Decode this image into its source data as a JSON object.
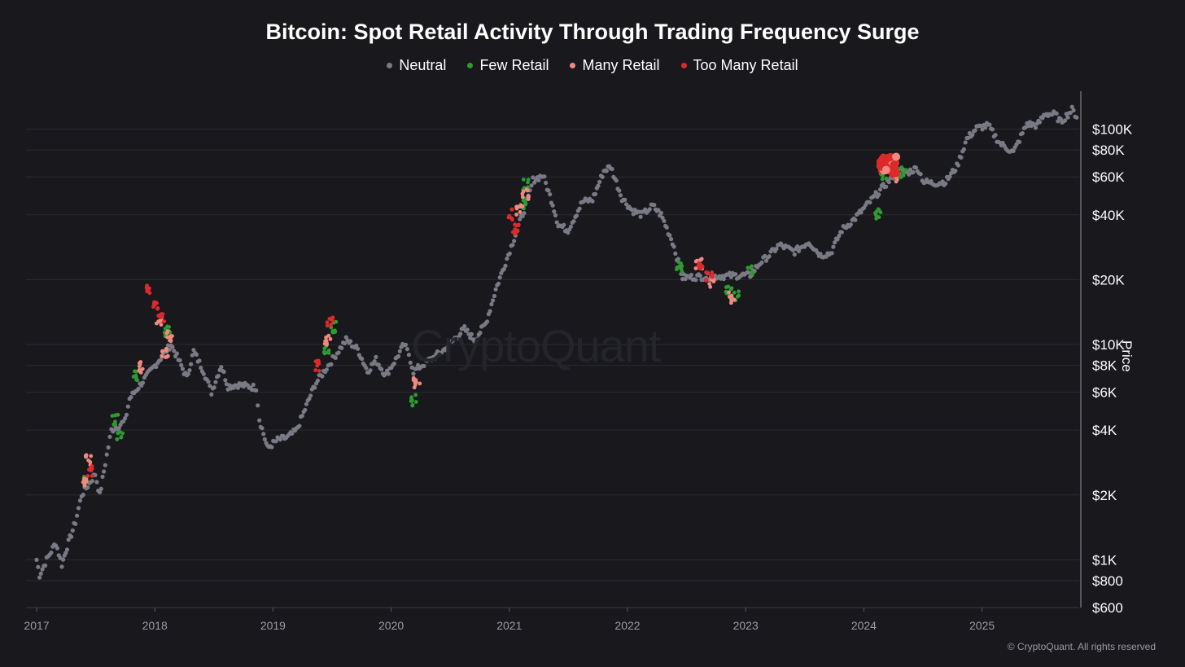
{
  "title": "Bitcoin: Spot Retail Activity Through Trading Frequency Surge",
  "watermark": "CryptoQuant",
  "copyright": "© CryptoQuant. All rights reserved",
  "colors": {
    "background": "#18181d",
    "grid": "#2a2a31",
    "neutral": "#7a7a86",
    "few_retail": "#2f9a2f",
    "many_retail": "#f08a80",
    "too_many_retail": "#dc2a2a"
  },
  "chart_data": {
    "type": "scatter",
    "title": "Bitcoin: Spot Retail Activity Through Trading Frequency Surge",
    "ylabel": "Price",
    "yscale": "log",
    "ylim": [
      600,
      150000
    ],
    "xlim": [
      "2017-01-01",
      "2025-11-10"
    ],
    "x_ticks": [
      "2017",
      "2018",
      "2019",
      "2020",
      "2021",
      "2022",
      "2023",
      "2024",
      "2025"
    ],
    "y_ticks": [
      {
        "value": 600,
        "label": "$600"
      },
      {
        "value": 800,
        "label": "$800"
      },
      {
        "value": 1000,
        "label": "$1K"
      },
      {
        "value": 2000,
        "label": "$2K"
      },
      {
        "value": 4000,
        "label": "$4K"
      },
      {
        "value": 6000,
        "label": "$6K"
      },
      {
        "value": 8000,
        "label": "$8K"
      },
      {
        "value": 10000,
        "label": "$10K"
      },
      {
        "value": 20000,
        "label": "$20K"
      },
      {
        "value": 40000,
        "label": "$40K"
      },
      {
        "value": 60000,
        "label": "$60K"
      },
      {
        "value": 80000,
        "label": "$80K"
      },
      {
        "value": 100000,
        "label": "$100K"
      }
    ],
    "legend_position": "top-center",
    "grid": true,
    "series": [
      {
        "name": "Neutral",
        "color": "#7a7a86",
        "points": [
          [
            "2017-01-01",
            1000
          ],
          [
            "2017-01-10",
            850
          ],
          [
            "2017-02-01",
            1000
          ],
          [
            "2017-03-01",
            1200
          ],
          [
            "2017-03-20",
            950
          ],
          [
            "2017-04-01",
            1100
          ],
          [
            "2017-05-01",
            1500
          ],
          [
            "2017-05-20",
            2000
          ],
          [
            "2017-07-01",
            2500
          ],
          [
            "2017-07-15",
            2000
          ],
          [
            "2017-08-01",
            2800
          ],
          [
            "2017-08-20",
            4000
          ],
          [
            "2017-10-01",
            4400
          ],
          [
            "2017-10-15",
            5600
          ],
          [
            "2018-02-20",
            10000
          ],
          [
            "2018-03-15",
            8500
          ],
          [
            "2018-04-10",
            7000
          ],
          [
            "2018-05-01",
            9300
          ],
          [
            "2018-06-01",
            7500
          ],
          [
            "2018-06-25",
            6000
          ],
          [
            "2018-07-25",
            8000
          ],
          [
            "2018-08-15",
            6400
          ],
          [
            "2018-09-15",
            6500
          ],
          [
            "2018-10-15",
            6400
          ],
          [
            "2018-11-10",
            6300
          ],
          [
            "2018-11-20",
            4500
          ],
          [
            "2018-12-15",
            3300
          ],
          [
            "2019-01-15",
            3600
          ],
          [
            "2019-02-15",
            3700
          ],
          [
            "2019-03-15",
            4000
          ],
          [
            "2019-04-10",
            5000
          ],
          [
            "2019-05-10",
            6500
          ],
          [
            "2019-08-15",
            10500
          ],
          [
            "2019-09-20",
            9500
          ],
          [
            "2019-10-20",
            7500
          ],
          [
            "2019-11-15",
            8500
          ],
          [
            "2019-12-15",
            7200
          ],
          [
            "2020-01-15",
            8500
          ],
          [
            "2020-02-10",
            10000
          ],
          [
            "2020-02-25",
            9000
          ],
          [
            "2020-03-10",
            7500
          ],
          [
            "2020-05-10",
            8700
          ],
          [
            "2020-06-15",
            9500
          ],
          [
            "2020-07-25",
            11000
          ],
          [
            "2020-08-15",
            11800
          ],
          [
            "2020-09-15",
            10500
          ],
          [
            "2020-10-20",
            12500
          ],
          [
            "2020-11-20",
            18000
          ],
          [
            "2020-12-20",
            24000
          ],
          [
            "2021-03-01",
            48000
          ],
          [
            "2021-03-15",
            58000
          ],
          [
            "2021-04-15",
            61000
          ],
          [
            "2021-05-15",
            45000
          ],
          [
            "2021-06-01",
            36000
          ],
          [
            "2021-07-01",
            34000
          ],
          [
            "2021-08-15",
            46000
          ],
          [
            "2021-09-15",
            47000
          ],
          [
            "2021-10-20",
            64000
          ],
          [
            "2021-11-10",
            67000
          ],
          [
            "2021-12-15",
            48000
          ],
          [
            "2022-01-15",
            42000
          ],
          [
            "2022-02-15",
            40000
          ],
          [
            "2022-03-20",
            44000
          ],
          [
            "2022-04-15",
            40000
          ],
          [
            "2022-05-20",
            30000
          ],
          [
            "2022-06-20",
            20500
          ],
          [
            "2023-01-15",
            21000
          ],
          [
            "2023-02-15",
            24000
          ],
          [
            "2023-03-15",
            26000
          ],
          [
            "2023-04-15",
            29000
          ],
          [
            "2023-06-01",
            27000
          ],
          [
            "2023-07-15",
            30000
          ],
          [
            "2023-08-20",
            26000
          ],
          [
            "2023-09-20",
            26500
          ],
          [
            "2023-10-25",
            34000
          ],
          [
            "2023-12-01",
            38000
          ],
          [
            "2024-04-15",
            64000
          ],
          [
            "2024-05-15",
            63000
          ],
          [
            "2024-06-15",
            66000
          ],
          [
            "2024-07-05",
            57000
          ],
          [
            "2024-08-05",
            56000
          ],
          [
            "2024-09-10",
            57000
          ],
          [
            "2024-10-15",
            67000
          ],
          [
            "2024-11-15",
            90000
          ],
          [
            "2024-12-15",
            101000
          ],
          [
            "2025-01-20",
            104000
          ],
          [
            "2025-02-25",
            86000
          ],
          [
            "2025-04-08",
            78000
          ],
          [
            "2025-05-20",
            106000
          ],
          [
            "2025-06-20",
            104000
          ],
          [
            "2025-07-15",
            118000
          ],
          [
            "2025-08-15",
            117000
          ],
          [
            "2025-09-01",
            108000
          ],
          [
            "2025-10-06",
            123000
          ],
          [
            "2025-10-25",
            112000
          ]
        ]
      },
      {
        "name": "Few Retail",
        "color": "#2f9a2f",
        "points": [
          [
            "2017-06-01",
            2300
          ],
          [
            "2017-09-01",
            4500
          ],
          [
            "2017-09-15",
            3800
          ],
          [
            "2017-11-05",
            7200
          ],
          [
            "2018-02-10",
            11500
          ],
          [
            "2019-06-15",
            9500
          ],
          [
            "2019-07-05",
            12000
          ],
          [
            "2020-03-13",
            5500
          ],
          [
            "2021-02-10",
            45000
          ],
          [
            "2021-02-22",
            55000
          ],
          [
            "2022-06-10",
            23000
          ],
          [
            "2022-11-10",
            17500
          ],
          [
            "2022-12-01",
            16800
          ],
          [
            "2023-01-15",
            22000
          ],
          [
            "2024-03-01",
            61000
          ],
          [
            "2024-02-15",
            40000
          ],
          [
            "2024-05-01",
            63000
          ]
        ]
      },
      {
        "name": "Many Retail",
        "color": "#f08a80",
        "points": [
          [
            "2017-05-25",
            2300
          ],
          [
            "2017-06-10",
            2900
          ],
          [
            "2017-11-15",
            7800
          ],
          [
            "2018-01-15",
            13000
          ],
          [
            "2018-02-01",
            9000
          ],
          [
            "2018-02-15",
            11000
          ],
          [
            "2019-06-20",
            10500
          ],
          [
            "2020-03-20",
            6600
          ],
          [
            "2021-02-01",
            42000
          ],
          [
            "2021-02-20",
            50000
          ],
          [
            "2022-08-10",
            23500
          ],
          [
            "2022-09-20",
            19500
          ],
          [
            "2022-11-20",
            16500
          ],
          [
            "2024-03-20",
            68000
          ],
          [
            "2024-04-15",
            60000
          ]
        ]
      },
      {
        "name": "Too Many Retail",
        "color": "#dc2a2a",
        "points": [
          [
            "2017-06-15",
            2600
          ],
          [
            "2017-12-15",
            18000
          ],
          [
            "2018-01-01",
            15000
          ],
          [
            "2018-01-20",
            13500
          ],
          [
            "2019-06-25",
            12800
          ],
          [
            "2019-05-20",
            8000
          ],
          [
            "2021-01-08",
            40000
          ],
          [
            "2021-01-20",
            34000
          ],
          [
            "2022-08-15",
            22500
          ],
          [
            "2022-09-10",
            20500
          ],
          [
            "2024-03-12",
            71000
          ],
          [
            "2024-03-25",
            66000
          ]
        ]
      }
    ]
  }
}
